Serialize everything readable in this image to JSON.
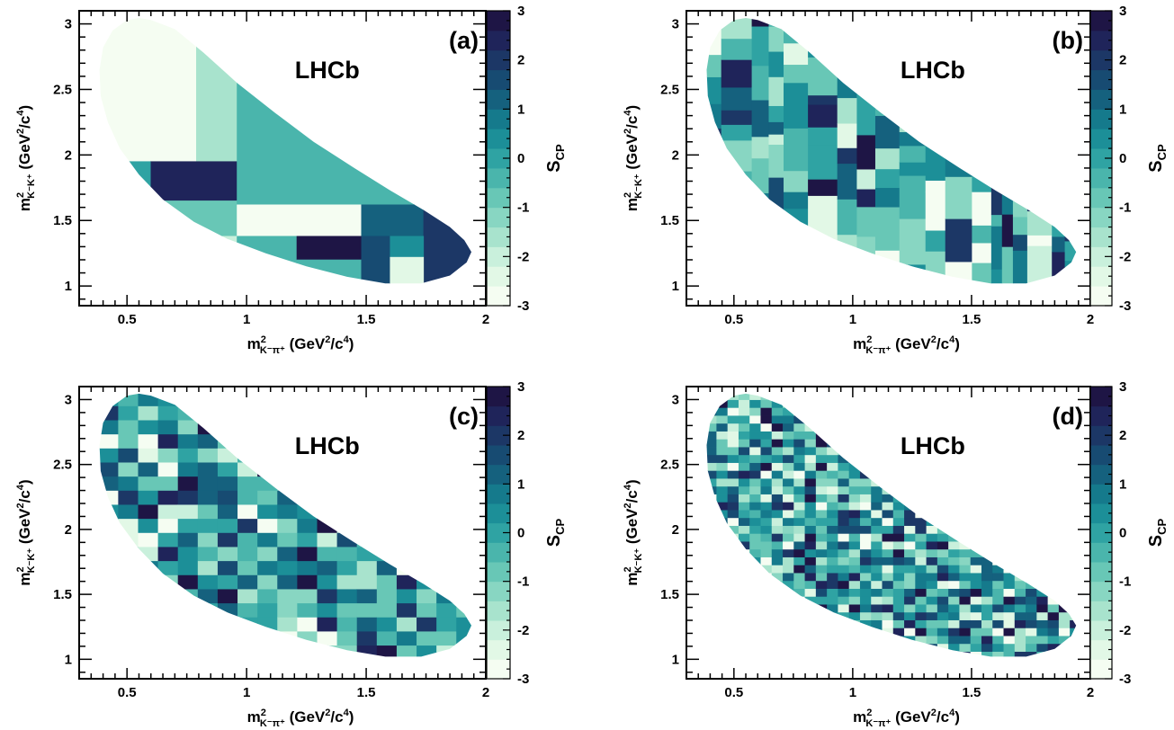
{
  "colorscale": [
    "#f5fdf2",
    "#e2f8e6",
    "#c9f0dc",
    "#a8e3cd",
    "#88d6c2",
    "#68c7b6",
    "#4ab5ac",
    "#2fa3a3",
    "#1c8f98",
    "#157a8c",
    "#15617e",
    "#174b72",
    "#1c3766",
    "#1f245a",
    "#1e1545"
  ],
  "chart_data": [
    {
      "type": "heatmap",
      "panel_label": "(a)",
      "experiment_label": "LHCb",
      "xlabel": {
        "base": "m",
        "sub": "K⁻π⁺",
        "sup": "2",
        "unit": " (GeV",
        "unit_sup": "2",
        "unit_mid": "/c",
        "unit_sup2": "4",
        "unit_end": ")"
      },
      "ylabel": {
        "base": "m",
        "sub": "K⁻K⁺",
        "sup": "2",
        "unit": " (GeV",
        "unit_sup": "2",
        "unit_mid": "/c",
        "unit_sup2": "4",
        "unit_end": ")"
      },
      "zlabel": "S",
      "zlabel_sub": "CP",
      "xlim": [
        0.3,
        2.0
      ],
      "ylim": [
        0.85,
        3.1
      ],
      "zlim": [
        -3,
        3
      ],
      "xticks": [
        "0.5",
        "1",
        "1.5",
        "2"
      ],
      "xtick_values": [
        0.5,
        1,
        1.5,
        2
      ],
      "yticks": [
        "1",
        "1.5",
        "2",
        "2.5",
        "3"
      ],
      "ytick_values": [
        1,
        1.5,
        2,
        2.5,
        3
      ],
      "zticks": [
        "3",
        "2",
        "1",
        "0",
        "-1",
        "-2",
        "-3"
      ],
      "ztick_values": [
        3,
        2,
        1,
        0,
        -1,
        -2,
        -3
      ],
      "binning": "adaptive",
      "bins": [
        {
          "x": [
            0.3,
            0.79
          ],
          "y": [
            1.95,
            3.1
          ],
          "z": -2.9
        },
        {
          "x": [
            0.79,
            0.96
          ],
          "y": [
            1.95,
            3.1
          ],
          "z": -1.6
        },
        {
          "x": [
            0.3,
            0.6
          ],
          "y": [
            1.65,
            1.95
          ],
          "z": 0.0
        },
        {
          "x": [
            0.6,
            0.96
          ],
          "y": [
            1.65,
            1.95
          ],
          "z": 2.2
        },
        {
          "x": [
            0.3,
            0.96
          ],
          "y": [
            1.38,
            1.65
          ],
          "z": -0.6
        },
        {
          "x": [
            0.3,
            0.96
          ],
          "y": [
            0.85,
            1.38
          ],
          "z": -1.9
        },
        {
          "x": [
            0.96,
            2.0
          ],
          "y": [
            1.62,
            3.1
          ],
          "z": -0.2
        },
        {
          "x": [
            0.96,
            1.21
          ],
          "y": [
            1.38,
            1.62
          ],
          "z": -2.6
        },
        {
          "x": [
            1.21,
            1.48
          ],
          "y": [
            1.38,
            1.62
          ],
          "z": -3.0
        },
        {
          "x": [
            1.48,
            1.74
          ],
          "y": [
            1.38,
            1.62
          ],
          "z": 1.0
        },
        {
          "x": [
            1.74,
            2.0
          ],
          "y": [
            0.85,
            1.62
          ],
          "z": 2.0
        },
        {
          "x": [
            0.96,
            1.21
          ],
          "y": [
            0.85,
            1.38
          ],
          "z": -0.3
        },
        {
          "x": [
            1.21,
            1.48
          ],
          "y": [
            1.2,
            1.38
          ],
          "z": 2.8
        },
        {
          "x": [
            1.21,
            1.48
          ],
          "y": [
            0.85,
            1.2
          ],
          "z": -0.4
        },
        {
          "x": [
            1.48,
            1.6
          ],
          "y": [
            0.85,
            1.38
          ],
          "z": 1.6
        },
        {
          "x": [
            1.6,
            1.74
          ],
          "y": [
            1.22,
            1.38
          ],
          "z": 0.4
        },
        {
          "x": [
            1.6,
            1.74
          ],
          "y": [
            0.85,
            1.22
          ],
          "z": -2.2
        }
      ]
    },
    {
      "type": "heatmap",
      "panel_label": "(b)",
      "experiment_label": "LHCb",
      "xlabel": {
        "base": "m",
        "sub": "K⁻π⁺",
        "sup": "2",
        "unit": " (GeV",
        "unit_sup": "2",
        "unit_mid": "/c",
        "unit_sup2": "4",
        "unit_end": ")"
      },
      "ylabel": {
        "base": "m",
        "sub": "K⁻K⁺",
        "sup": "2",
        "unit": " (GeV",
        "unit_sup": "2",
        "unit_mid": "/c",
        "unit_sup2": "4",
        "unit_end": ")"
      },
      "zlabel": "S",
      "zlabel_sub": "CP",
      "xlim": [
        0.3,
        2.0
      ],
      "ylim": [
        0.85,
        3.1
      ],
      "zlim": [
        -3,
        3
      ],
      "xticks": [
        "0.5",
        "1",
        "1.5",
        "2"
      ],
      "xtick_values": [
        0.5,
        1,
        1.5,
        2
      ],
      "yticks": [
        "1",
        "1.5",
        "2",
        "2.5",
        "3"
      ],
      "ytick_values": [
        1,
        1.5,
        2,
        2.5,
        3
      ],
      "zticks": [
        "3",
        "2",
        "1",
        "0",
        "-1",
        "-2",
        "-3"
      ],
      "ztick_values": [
        3,
        2,
        1,
        0,
        -1,
        -2,
        -3
      ],
      "binning": "adaptive-fine",
      "seed": 7,
      "nx": 24,
      "ny": 15
    },
    {
      "type": "heatmap",
      "panel_label": "(c)",
      "experiment_label": "LHCb",
      "xlabel": {
        "base": "m",
        "sub": "K⁻π⁺",
        "sup": "2",
        "unit": " (GeV",
        "unit_sup": "2",
        "unit_mid": "/c",
        "unit_sup2": "4",
        "unit_end": ")"
      },
      "ylabel": {
        "base": "m",
        "sub": "K⁻K⁺",
        "sup": "2",
        "unit": " (GeV",
        "unit_sup": "2",
        "unit_mid": "/c",
        "unit_sup2": "4",
        "unit_end": ")"
      },
      "zlabel": "S",
      "zlabel_sub": "CP",
      "xlim": [
        0.3,
        2.0
      ],
      "ylim": [
        0.85,
        3.1
      ],
      "zlim": [
        -3,
        3
      ],
      "xticks": [
        "0.5",
        "1",
        "1.5",
        "2"
      ],
      "xtick_values": [
        0.5,
        1,
        1.5,
        2
      ],
      "yticks": [
        "1",
        "1.5",
        "2",
        "2.5",
        "3"
      ],
      "ytick_values": [
        1,
        1.5,
        2,
        2.5,
        3
      ],
      "zticks": [
        "3",
        "2",
        "1",
        "0",
        "-1",
        "-2",
        "-3"
      ],
      "ztick_values": [
        3,
        2,
        1,
        0,
        -1,
        -2,
        -3
      ],
      "binning": "uniform",
      "seed": 21,
      "nx": 19,
      "ny": 19
    },
    {
      "type": "heatmap",
      "panel_label": "(d)",
      "experiment_label": "LHCb",
      "xlabel": {
        "base": "m",
        "sub": "K⁻π⁺",
        "sup": "2",
        "unit": " (GeV",
        "unit_sup": "2",
        "unit_mid": "/c",
        "unit_sup2": "4",
        "unit_end": ")"
      },
      "ylabel": {
        "base": "m",
        "sub": "K⁻K⁺",
        "sup": "2",
        "unit": " (GeV",
        "unit_sup": "2",
        "unit_mid": "/c",
        "unit_sup2": "4",
        "unit_end": ")"
      },
      "zlabel": "S",
      "zlabel_sub": "CP",
      "xlim": [
        0.3,
        2.0
      ],
      "ylim": [
        0.85,
        3.1
      ],
      "zlim": [
        -3,
        3
      ],
      "xticks": [
        "0.5",
        "1",
        "1.5",
        "2"
      ],
      "xtick_values": [
        0.5,
        1,
        1.5,
        2
      ],
      "yticks": [
        "1",
        "1.5",
        "2",
        "2.5",
        "3"
      ],
      "ytick_values": [
        1,
        1.5,
        2,
        2.5,
        3
      ],
      "zticks": [
        "3",
        "2",
        "1",
        "0",
        "-1",
        "-2",
        "-3"
      ],
      "ztick_values": [
        3,
        2,
        1,
        0,
        -1,
        -2,
        -3
      ],
      "binning": "uniform",
      "seed": 99,
      "nx": 34,
      "ny": 34
    }
  ]
}
